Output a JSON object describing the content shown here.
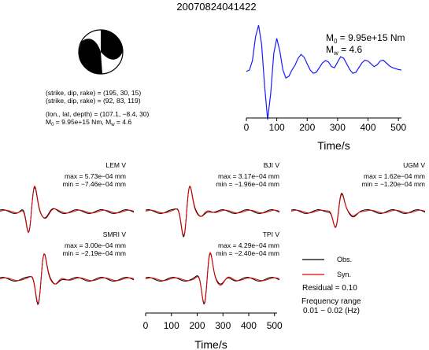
{
  "title": "20070824041422",
  "beachball": {
    "line1": "(strike, dip, rake) = (195, 30, 15)",
    "line2": "(strike, dip, rake) = (92, 83, 119)",
    "line3": "(lon., lat, depth) = (107.1, −8.4, 30)",
    "line4": "M₀ = 9.95e+15 Nm, Mᵥ = 4.6",
    "line4_m0": "M",
    "line4_m0_sub": "0",
    "line4_m0_val": " = 9.95e+15 Nm, M",
    "line4_mw_sub": "w",
    "line4_mw_val": " = 4.6",
    "colors": {
      "fill": "#000000",
      "edge": "#000000"
    }
  },
  "source_plot": {
    "m0_label": "M",
    "m0_sub": "0",
    "m0_value": " = 9.95e+15 Nm",
    "mw_label": "M",
    "mw_sub": "w",
    "mw_value": " = 4.6",
    "xlabel": "Time/s",
    "ticks": [
      "0",
      "100",
      "200",
      "300",
      "400",
      "500"
    ]
  },
  "waveforms": {
    "stations": [
      {
        "name": "LEM V",
        "max": "max = 5.73e−04 mm",
        "min": "min = −7.46e−04 mm"
      },
      {
        "name": "BJI V",
        "max": "max = 3.17e−04 mm",
        "min": "min = −1.96e−04 mm"
      },
      {
        "name": "UGM V",
        "max": "max = 1.62e−04 mm",
        "min": "min = −1.20e−04 mm"
      },
      {
        "name": "SMRI V",
        "max": "max = 3.00e−04 mm",
        "min": "min = −2.19e−04 mm"
      },
      {
        "name": "TPI V",
        "max": "max = 4.29e−04 mm",
        "min": "min = −2.40e−04 mm"
      }
    ],
    "xlabel": "Time/s",
    "ticks": [
      "0",
      "100",
      "200",
      "300",
      "400",
      "500"
    ]
  },
  "legend": {
    "obs": "Obs.",
    "syn": "Syn.",
    "residual": "Residual = 0.10",
    "freq_label": "Frequency range",
    "freq_value": "0.01 − 0.02 (Hz)"
  },
  "chart_data": {
    "type": "line",
    "source_time_function": {
      "x": [
        0,
        10,
        20,
        30,
        40,
        50,
        60,
        70,
        80,
        90,
        100,
        110,
        120,
        130,
        140,
        150,
        160,
        170,
        180,
        190,
        200,
        210,
        220,
        230,
        240,
        250,
        260,
        270,
        280,
        290,
        300,
        310,
        320,
        330,
        340,
        350,
        360,
        370,
        380,
        390,
        400,
        410,
        420,
        430,
        440,
        450,
        460,
        470,
        480,
        490,
        500,
        510
      ],
      "y": [
        0.02,
        0.05,
        0.25,
        0.75,
        1.0,
        0.6,
        -0.3,
        -1.0,
        -0.45,
        0.4,
        0.72,
        0.45,
        0.05,
        -0.12,
        -0.08,
        0.05,
        0.15,
        0.3,
        0.38,
        0.32,
        0.18,
        0.05,
        -0.02,
        0.0,
        0.1,
        0.2,
        0.25,
        0.22,
        0.12,
        0.1,
        0.22,
        0.33,
        0.3,
        0.18,
        0.06,
        -0.02,
        0.0,
        0.1,
        0.2,
        0.26,
        0.24,
        0.18,
        0.12,
        0.16,
        0.24,
        0.26,
        0.2,
        0.14,
        0.1,
        0.08,
        0.06,
        0.05
      ],
      "xlim": [
        0,
        520
      ],
      "color": "#1a1aff"
    },
    "obs_color": "#000000",
    "syn_color": "#e00000",
    "wave_xlim": [
      0,
      510
    ]
  }
}
